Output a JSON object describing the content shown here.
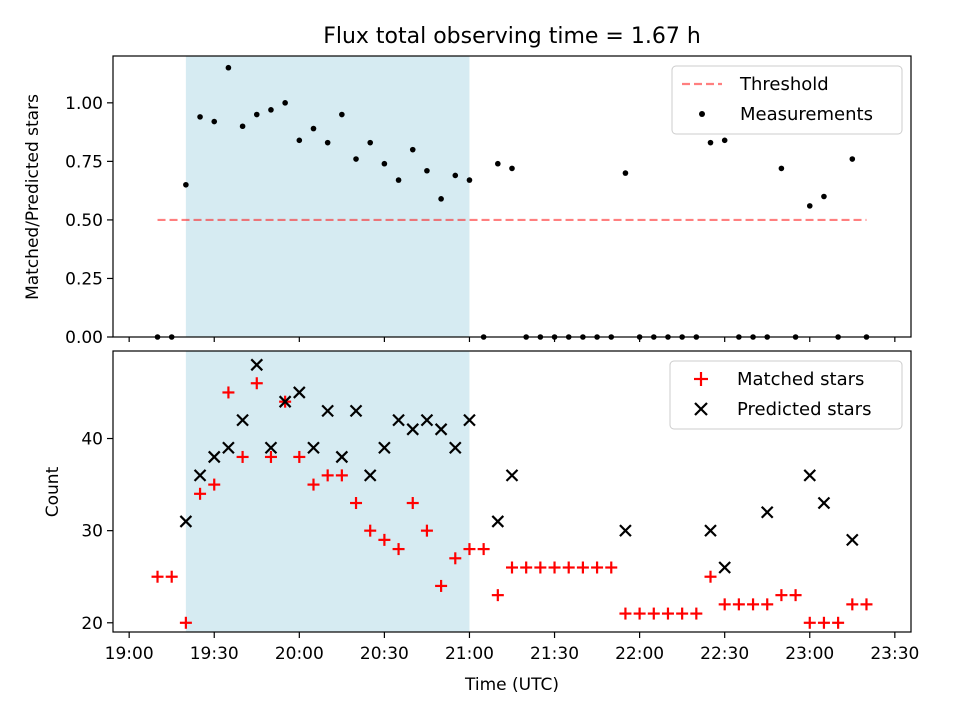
{
  "title": "Flux total observing time = 1.67 h",
  "xlabel": "Time (UTC)",
  "xticks": [
    "19:00",
    "19:30",
    "20:00",
    "20:30",
    "21:00",
    "21:30",
    "22:00",
    "22:30",
    "23:00",
    "23:30"
  ],
  "colors": {
    "shade": "#add8e6",
    "threshold": "#ff0000",
    "measurement": "#000000",
    "matched": "#ff0000",
    "predicted": "#000000"
  },
  "chart_data": [
    {
      "type": "scatter",
      "ylabel": "Matched/Predicted stars",
      "xlim": [
        "19:00",
        "23:30"
      ],
      "ylim": [
        0,
        1.2
      ],
      "yticks": [
        "0.00",
        "0.25",
        "0.50",
        "0.75",
        "1.00"
      ],
      "shaded_region": [
        "19:20",
        "21:00"
      ],
      "legend_position": "upper right",
      "legend": [
        "Threshold",
        "Measurements"
      ],
      "threshold": {
        "name": "Threshold",
        "value": 0.5,
        "x_range": [
          "19:10",
          "23:20"
        ]
      },
      "series": [
        {
          "name": "Measurements",
          "x": [
            "19:10",
            "19:15",
            "19:20",
            "19:25",
            "19:30",
            "19:35",
            "19:40",
            "19:45",
            "19:50",
            "19:55",
            "20:00",
            "20:05",
            "20:10",
            "20:15",
            "20:20",
            "20:25",
            "20:30",
            "20:35",
            "20:40",
            "20:45",
            "20:50",
            "20:55",
            "21:00",
            "21:05",
            "21:10",
            "21:15",
            "21:20",
            "21:25",
            "21:30",
            "21:35",
            "21:40",
            "21:45",
            "21:50",
            "21:55",
            "22:00",
            "22:05",
            "22:10",
            "22:15",
            "22:20",
            "22:25",
            "22:30",
            "22:35",
            "22:40",
            "22:45",
            "22:50",
            "22:55",
            "23:00",
            "23:05",
            "23:10",
            "23:15",
            "23:20"
          ],
          "y": [
            0,
            0,
            0.65,
            0.94,
            0.92,
            1.15,
            0.9,
            0.95,
            0.97,
            1.0,
            0.84,
            0.89,
            0.83,
            0.95,
            0.76,
            0.83,
            0.74,
            0.67,
            0.8,
            0.71,
            0.59,
            0.69,
            0.67,
            0,
            0.74,
            0.72,
            0,
            0,
            0,
            0,
            0,
            0,
            0,
            0.7,
            0,
            0,
            0,
            0,
            0,
            0.83,
            0.84,
            0,
            0,
            0,
            0.72,
            0,
            0.56,
            0.6,
            0,
            0.76,
            0
          ]
        }
      ]
    },
    {
      "type": "scatter",
      "ylabel": "Count",
      "xlim": [
        "19:00",
        "23:30"
      ],
      "ylim": [
        19,
        49.5
      ],
      "yticks": [
        "20",
        "30",
        "40"
      ],
      "shaded_region": [
        "19:20",
        "21:00"
      ],
      "legend_position": "upper right",
      "legend": [
        "Matched stars",
        "Predicted stars"
      ],
      "series": [
        {
          "name": "Matched stars",
          "x": [
            "19:10",
            "19:15",
            "19:20",
            "19:25",
            "19:30",
            "19:35",
            "19:40",
            "19:45",
            "19:50",
            "19:55",
            "20:00",
            "20:05",
            "20:10",
            "20:15",
            "20:20",
            "20:25",
            "20:30",
            "20:35",
            "20:40",
            "20:45",
            "20:50",
            "20:55",
            "21:00",
            "21:05",
            "21:10",
            "21:15",
            "21:20",
            "21:25",
            "21:30",
            "21:35",
            "21:40",
            "21:45",
            "21:50",
            "21:55",
            "22:00",
            "22:05",
            "22:10",
            "22:15",
            "22:20",
            "22:25",
            "22:30",
            "22:35",
            "22:40",
            "22:45",
            "22:50",
            "22:55",
            "23:00",
            "23:05",
            "23:10",
            "23:15",
            "23:20"
          ],
          "y": [
            25,
            25,
            20,
            34,
            35,
            45,
            38,
            46,
            38,
            44,
            38,
            35,
            36,
            36,
            33,
            30,
            29,
            28,
            33,
            30,
            24,
            27,
            28,
            28,
            23,
            26,
            26,
            26,
            26,
            26,
            26,
            26,
            26,
            21,
            21,
            21,
            21,
            21,
            21,
            25,
            22,
            22,
            22,
            22,
            23,
            23,
            20,
            20,
            20,
            22,
            22
          ]
        },
        {
          "name": "Predicted stars",
          "x": [
            "19:20",
            "19:25",
            "19:30",
            "19:35",
            "19:40",
            "19:45",
            "19:50",
            "19:55",
            "20:00",
            "20:05",
            "20:10",
            "20:15",
            "20:20",
            "20:25",
            "20:30",
            "20:35",
            "20:40",
            "20:45",
            "20:50",
            "20:55",
            "21:00",
            "21:10",
            "21:15",
            "21:55",
            "22:25",
            "22:30",
            "22:45",
            "23:00",
            "23:05",
            "23:15"
          ],
          "y": [
            31,
            36,
            38,
            39,
            42,
            48,
            39,
            44,
            45,
            39,
            43,
            38,
            43,
            36,
            39,
            42,
            41,
            42,
            41,
            39,
            42,
            31,
            36,
            30,
            30,
            26,
            32,
            36,
            33,
            29
          ]
        }
      ]
    }
  ]
}
